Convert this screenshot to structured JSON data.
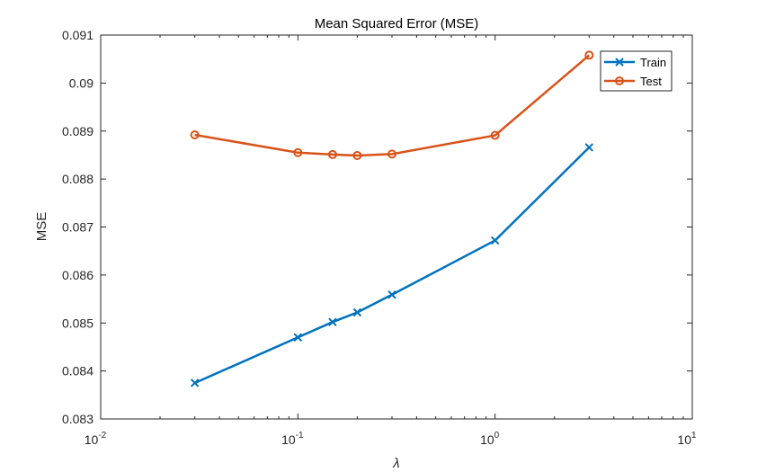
{
  "chart_data": {
    "type": "line",
    "title": "Mean Squared Error (MSE)",
    "xlabel": "λ",
    "ylabel": "MSE",
    "xscale": "log",
    "xlim": [
      0.01,
      10
    ],
    "ylim": [
      0.083,
      0.091
    ],
    "x_ticks": [
      {
        "value": 0.01,
        "base": "10",
        "exp": "-2"
      },
      {
        "value": 0.1,
        "base": "10",
        "exp": "-1"
      },
      {
        "value": 1,
        "base": "10",
        "exp": "0"
      },
      {
        "value": 10,
        "base": "10",
        "exp": "1"
      }
    ],
    "y_ticks": [
      {
        "value": 0.083,
        "label": "0.083"
      },
      {
        "value": 0.084,
        "label": "0.084"
      },
      {
        "value": 0.085,
        "label": "0.085"
      },
      {
        "value": 0.086,
        "label": "0.086"
      },
      {
        "value": 0.087,
        "label": "0.087"
      },
      {
        "value": 0.088,
        "label": "0.088"
      },
      {
        "value": 0.089,
        "label": "0.089"
      },
      {
        "value": 0.09,
        "label": "0.09"
      },
      {
        "value": 0.091,
        "label": "0.091"
      }
    ],
    "grid": false,
    "legend_position": "top-right",
    "series": [
      {
        "name": "Train",
        "color": "#0072BD",
        "marker": "x",
        "x": [
          0.03,
          0.1,
          0.15,
          0.2,
          0.3,
          1,
          3
        ],
        "y": [
          0.08375,
          0.0847,
          0.08502,
          0.08522,
          0.08559,
          0.08672,
          0.08866
        ]
      },
      {
        "name": "Test",
        "color": "#D95319",
        "marker": "o",
        "x": [
          0.03,
          0.1,
          0.15,
          0.2,
          0.3,
          1,
          3
        ],
        "y": [
          0.08892,
          0.08855,
          0.08851,
          0.08849,
          0.08852,
          0.08891,
          0.09058
        ]
      }
    ]
  }
}
